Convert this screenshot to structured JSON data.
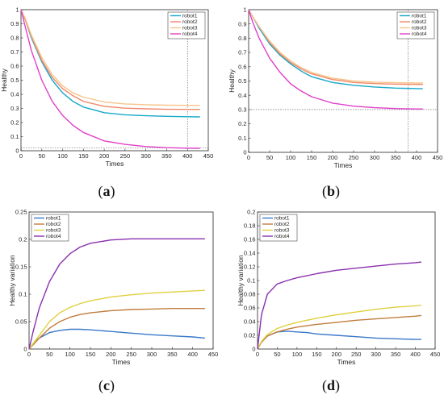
{
  "chart_data": [
    {
      "type": "line",
      "caption_letter": "a",
      "xlabel": "Times",
      "ylabel": "Healthy",
      "xlim": [
        0,
        450
      ],
      "ylim": [
        0,
        1
      ],
      "xticks": [
        0,
        50,
        100,
        150,
        200,
        250,
        300,
        350,
        400,
        450
      ],
      "yticks": [
        0,
        0.1,
        0.2,
        0.3,
        0.4,
        0.5,
        0.6,
        0.7,
        0.8,
        0.9,
        1
      ],
      "legend": "top-right",
      "grid": false,
      "reference_lines": {
        "vertical_x": 400,
        "horizontal_y": 0.02
      },
      "x": [
        0,
        10,
        25,
        50,
        75,
        100,
        125,
        150,
        200,
        250,
        300,
        350,
        400,
        430
      ],
      "series": [
        {
          "name": "robot1",
          "color": "#16a8c8",
          "values": [
            1,
            0.93,
            0.8,
            0.63,
            0.5,
            0.41,
            0.35,
            0.31,
            0.27,
            0.255,
            0.248,
            0.244,
            0.241,
            0.24
          ]
        },
        {
          "name": "robot2",
          "color": "#f0896a",
          "values": [
            1,
            0.93,
            0.81,
            0.64,
            0.52,
            0.44,
            0.39,
            0.35,
            0.315,
            0.302,
            0.297,
            0.294,
            0.293,
            0.293
          ]
        },
        {
          "name": "robot3",
          "color": "#f6c48a",
          "values": [
            1,
            0.94,
            0.82,
            0.66,
            0.54,
            0.46,
            0.41,
            0.38,
            0.345,
            0.332,
            0.326,
            0.323,
            0.322,
            0.322
          ]
        },
        {
          "name": "robot4",
          "color": "#e040c8",
          "values": [
            1,
            0.88,
            0.71,
            0.5,
            0.35,
            0.25,
            0.18,
            0.13,
            0.07,
            0.045,
            0.03,
            0.022,
            0.018,
            0.017
          ]
        }
      ]
    },
    {
      "type": "line",
      "caption_letter": "b",
      "xlabel": "Times",
      "ylabel": "Healthy",
      "xlim": [
        0,
        450
      ],
      "ylim": [
        0,
        1
      ],
      "xticks": [
        0,
        50,
        100,
        150,
        200,
        250,
        300,
        350,
        400,
        450
      ],
      "yticks": [
        0,
        0.1,
        0.2,
        0.3,
        0.4,
        0.5,
        0.6,
        0.7,
        0.8,
        0.9,
        1
      ],
      "legend": "top-right",
      "grid": false,
      "reference_lines": {
        "vertical_x": 380,
        "horizontal_y": 0.3
      },
      "x": [
        0,
        10,
        25,
        50,
        75,
        100,
        125,
        150,
        200,
        250,
        300,
        350,
        400,
        415
      ],
      "series": [
        {
          "name": "robot1",
          "color": "#16a8c8",
          "values": [
            1,
            0.95,
            0.87,
            0.76,
            0.68,
            0.62,
            0.57,
            0.53,
            0.49,
            0.47,
            0.458,
            0.45,
            0.447,
            0.446
          ]
        },
        {
          "name": "robot2",
          "color": "#f0896a",
          "values": [
            1,
            0.95,
            0.88,
            0.77,
            0.69,
            0.63,
            0.585,
            0.55,
            0.51,
            0.49,
            0.482,
            0.478,
            0.476,
            0.476
          ]
        },
        {
          "name": "robot3",
          "color": "#f6c48a",
          "values": [
            1,
            0.95,
            0.88,
            0.78,
            0.7,
            0.64,
            0.595,
            0.56,
            0.52,
            0.5,
            0.492,
            0.488,
            0.486,
            0.486
          ]
        },
        {
          "name": "robot4",
          "color": "#e040c8",
          "values": [
            1,
            0.91,
            0.8,
            0.66,
            0.56,
            0.48,
            0.43,
            0.39,
            0.345,
            0.324,
            0.313,
            0.307,
            0.304,
            0.304
          ]
        }
      ]
    },
    {
      "type": "line",
      "caption_letter": "c",
      "xlabel": "Times",
      "ylabel": "Healthy variation",
      "xlim": [
        0,
        450
      ],
      "ylim": [
        0,
        0.25
      ],
      "xticks": [
        0,
        50,
        100,
        150,
        200,
        250,
        300,
        350,
        400,
        450
      ],
      "yticks": [
        0,
        0.05,
        0.1,
        0.15,
        0.2,
        0.25
      ],
      "legend": "top-left",
      "grid": false,
      "x": [
        0,
        10,
        25,
        50,
        75,
        100,
        125,
        150,
        200,
        250,
        300,
        350,
        400,
        430
      ],
      "series": [
        {
          "name": "robot1",
          "color": "#3a78c8",
          "values": [
            0,
            0.01,
            0.02,
            0.03,
            0.034,
            0.036,
            0.036,
            0.035,
            0.032,
            0.029,
            0.026,
            0.024,
            0.022,
            0.02
          ]
        },
        {
          "name": "robot2",
          "color": "#c07d3c",
          "values": [
            0,
            0.008,
            0.02,
            0.038,
            0.05,
            0.058,
            0.063,
            0.066,
            0.07,
            0.072,
            0.073,
            0.074,
            0.074,
            0.074
          ]
        },
        {
          "name": "robot3",
          "color": "#e0d040",
          "values": [
            0,
            0.01,
            0.025,
            0.05,
            0.066,
            0.076,
            0.083,
            0.088,
            0.095,
            0.099,
            0.102,
            0.104,
            0.106,
            0.107
          ]
        },
        {
          "name": "robot4",
          "color": "#8a30b0",
          "values": [
            0,
            0.032,
            0.075,
            0.123,
            0.155,
            0.174,
            0.186,
            0.193,
            0.199,
            0.201,
            0.201,
            0.201,
            0.201,
            0.201
          ]
        }
      ]
    },
    {
      "type": "line",
      "caption_letter": "d",
      "xlabel": "Times",
      "ylabel": "Healthy variation",
      "xlim": [
        0,
        450
      ],
      "ylim": [
        0,
        0.2
      ],
      "xticks": [
        0,
        50,
        100,
        150,
        200,
        250,
        300,
        350,
        400,
        450
      ],
      "yticks": [
        0,
        0.02,
        0.04,
        0.06,
        0.08,
        0.1,
        0.12,
        0.14,
        0.16,
        0.18,
        0.2
      ],
      "legend": "top-left",
      "grid": false,
      "x": [
        0,
        10,
        25,
        50,
        75,
        100,
        125,
        150,
        200,
        250,
        300,
        350,
        400,
        415
      ],
      "series": [
        {
          "name": "robot1",
          "color": "#3a78c8",
          "values": [
            0,
            0.01,
            0.019,
            0.025,
            0.026,
            0.025,
            0.024,
            0.022,
            0.02,
            0.018,
            0.016,
            0.015,
            0.014,
            0.014
          ]
        },
        {
          "name": "robot2",
          "color": "#c07d3c",
          "values": [
            0,
            0.01,
            0.019,
            0.025,
            0.029,
            0.032,
            0.034,
            0.036,
            0.039,
            0.042,
            0.044,
            0.046,
            0.048,
            0.049
          ]
        },
        {
          "name": "robot3",
          "color": "#e0d040",
          "values": [
            0,
            0.011,
            0.021,
            0.03,
            0.035,
            0.039,
            0.042,
            0.045,
            0.05,
            0.054,
            0.058,
            0.061,
            0.063,
            0.064
          ]
        },
        {
          "name": "robot4",
          "color": "#8a30b0",
          "values": [
            0,
            0.05,
            0.08,
            0.095,
            0.1,
            0.104,
            0.107,
            0.11,
            0.115,
            0.118,
            0.121,
            0.124,
            0.126,
            0.127
          ]
        }
      ]
    }
  ]
}
